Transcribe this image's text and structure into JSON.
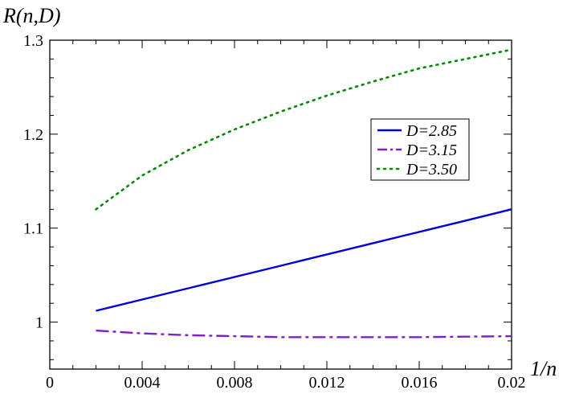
{
  "chart_data": {
    "type": "line",
    "xlabel": "1/n",
    "ylabel": "R(n,D)",
    "xlim": [
      0,
      0.02
    ],
    "ylim": [
      0.95,
      1.3
    ],
    "x_ticks": [
      0,
      0.004,
      0.008,
      0.012,
      0.016,
      0.02
    ],
    "x_tick_labels": [
      "0",
      "0.004",
      "0.008",
      "0.012",
      "0.016",
      "0.02"
    ],
    "y_ticks": [
      1.0,
      1.1,
      1.2,
      1.3
    ],
    "y_tick_labels": [
      "1",
      "1.1",
      "1.2",
      "1.3"
    ],
    "grid": false,
    "legend_position": "right",
    "series": [
      {
        "name": "D=2.85",
        "color": "#0000dd",
        "style": "solid",
        "x": [
          0.002,
          0.004,
          0.006,
          0.008,
          0.01,
          0.012,
          0.014,
          0.016,
          0.018,
          0.02
        ],
        "values": [
          1.012,
          1.024,
          1.036,
          1.048,
          1.06,
          1.072,
          1.084,
          1.096,
          1.108,
          1.12
        ]
      },
      {
        "name": "D=3.15",
        "color": "#8020c0",
        "style": "dashed",
        "x": [
          0.002,
          0.004,
          0.006,
          0.008,
          0.01,
          0.012,
          0.014,
          0.016,
          0.018,
          0.02
        ],
        "values": [
          0.991,
          0.988,
          0.986,
          0.985,
          0.984,
          0.984,
          0.984,
          0.984,
          0.9845,
          0.985
        ]
      },
      {
        "name": "D=3.50",
        "color": "#008800",
        "style": "dotted",
        "x": [
          0.002,
          0.004,
          0.006,
          0.008,
          0.01,
          0.012,
          0.014,
          0.016,
          0.018,
          0.02
        ],
        "values": [
          1.12,
          1.156,
          1.183,
          1.205,
          1.224,
          1.241,
          1.256,
          1.27,
          1.28,
          1.29
        ]
      }
    ]
  }
}
